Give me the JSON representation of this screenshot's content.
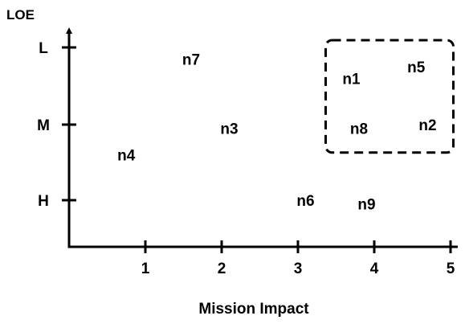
{
  "chart_data": {
    "type": "scatter",
    "title": "",
    "xlabel": "Mission Impact",
    "ylabel": "LOE",
    "xlim": [
      0,
      5
    ],
    "x_ticks": [
      1,
      2,
      3,
      4,
      5
    ],
    "y_categories": [
      "H",
      "M",
      "L"
    ],
    "y_ticks": [
      "L",
      "M",
      "H"
    ],
    "grid": false,
    "points": [
      {
        "label": "n1",
        "x": 3.7,
        "y": 2.6
      },
      {
        "label": "n2",
        "x": 4.7,
        "y": 2.0
      },
      {
        "label": "n3",
        "x": 2.1,
        "y": 1.95
      },
      {
        "label": "n4",
        "x": 0.75,
        "y": 1.6
      },
      {
        "label": "n5",
        "x": 4.55,
        "y": 2.75
      },
      {
        "label": "n6",
        "x": 3.1,
        "y": 1.0
      },
      {
        "label": "n7",
        "x": 1.6,
        "y": 2.85
      },
      {
        "label": "n8",
        "x": 3.8,
        "y": 1.95
      },
      {
        "label": "n9",
        "x": 3.9,
        "y": 0.95
      }
    ],
    "highlight": {
      "style": "dashed-box",
      "members": [
        "n1",
        "n2",
        "n5",
        "n8"
      ]
    }
  }
}
